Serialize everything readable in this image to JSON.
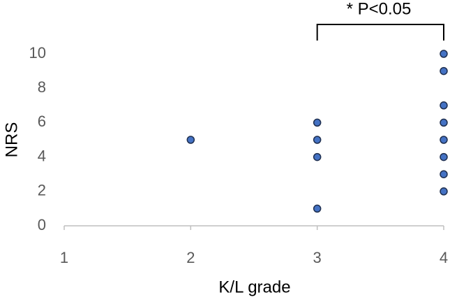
{
  "chart_data": {
    "type": "scatter",
    "x_label": "K/L grade",
    "y_label": "NRS",
    "annotation": "* P<0.05",
    "series": [
      {
        "color": "#4472c4",
        "x": [
          2,
          3,
          3,
          3,
          3,
          4,
          4,
          4,
          4,
          4,
          4,
          4,
          4
        ],
        "values": [
          5,
          6,
          5,
          4,
          1,
          10,
          9,
          7,
          6,
          5,
          4,
          3,
          2
        ]
      }
    ],
    "xlim": [
      1,
      4
    ],
    "xticks": [
      1,
      2,
      3,
      4
    ],
    "ylim": [
      0,
      10
    ],
    "yticks": [
      0,
      2,
      4,
      6,
      8,
      10
    ],
    "grid": false
  }
}
